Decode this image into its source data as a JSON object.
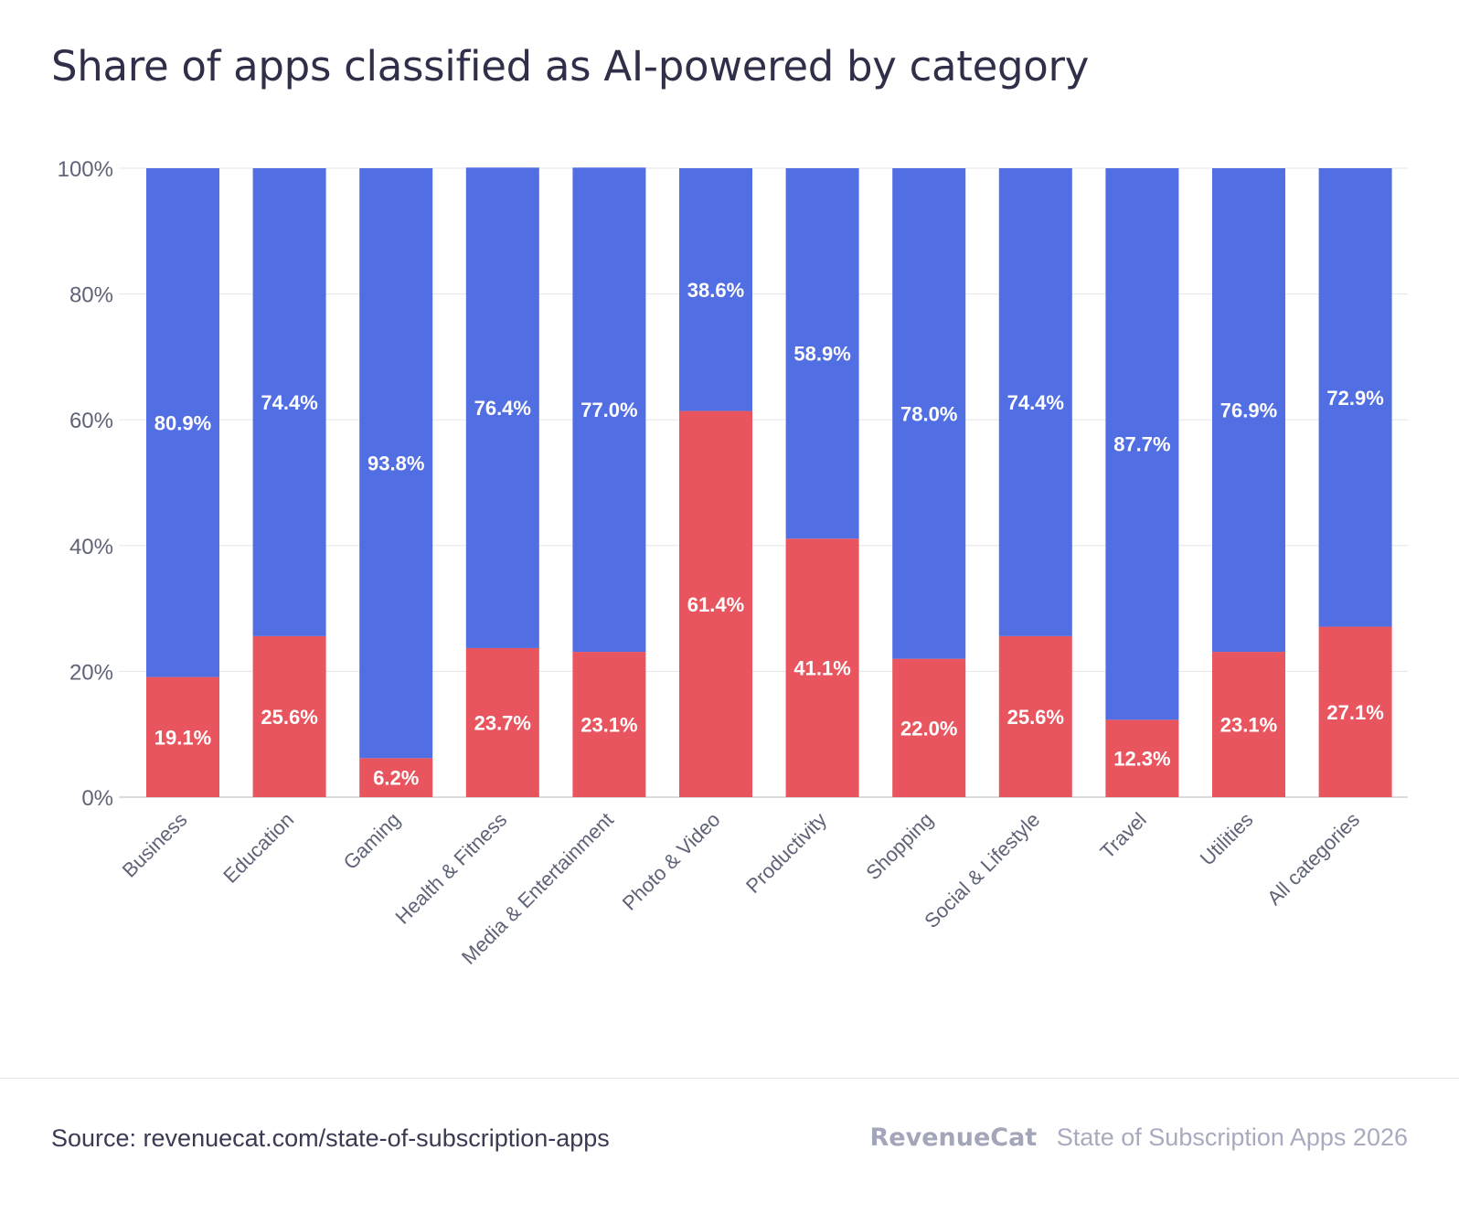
{
  "title": "Share of apps classified as AI-powered by category",
  "footer": {
    "source": "Source: revenuecat.com/state-of-subscription-apps",
    "brand": "RevenueCat",
    "report": "State of Subscription Apps 2026"
  },
  "colors": {
    "ai": "#e8555e",
    "non_ai": "#516ee2",
    "grid": "#e6e6ea",
    "tick_text": "#5f6377",
    "label_text": "#ffffff"
  },
  "chart_data": {
    "type": "bar",
    "stacked": true,
    "title": "Share of apps classified as AI-powered by category",
    "categories": [
      "Business",
      "Education",
      "Gaming",
      "Health & Fitness",
      "Media & Entertainment",
      "Photo & Video",
      "Productivity",
      "Shopping",
      "Social & Lifestyle",
      "Travel",
      "Utilities",
      "All categories"
    ],
    "series": [
      {
        "values": [
          19.1,
          25.6,
          6.2,
          23.7,
          23.1,
          61.4,
          41.1,
          22.0,
          25.6,
          12.3,
          23.1,
          27.1
        ],
        "color": "#e8555e"
      },
      {
        "values": [
          80.9,
          74.4,
          93.8,
          76.4,
          77.0,
          38.6,
          58.9,
          78.0,
          74.4,
          87.7,
          76.9,
          72.9
        ],
        "color": "#516ee2"
      }
    ],
    "value_labels": [
      [
        "19.1%",
        "25.6%",
        "6.2%",
        "23.7%",
        "23.1%",
        "61.4%",
        "41.1%",
        "22.0%",
        "25.6%",
        "12.3%",
        "23.1%",
        "27.1%"
      ],
      [
        "80.9%",
        "74.4%",
        "93.8%",
        "76.4%",
        "77.0%",
        "38.6%",
        "58.9%",
        "78.0%",
        "74.4%",
        "87.7%",
        "76.9%",
        "72.9%"
      ]
    ],
    "y_ticks": [
      "0%",
      "20%",
      "40%",
      "60%",
      "80%",
      "100%"
    ],
    "ylim": [
      0,
      100
    ],
    "grid": true,
    "legend": "none"
  }
}
